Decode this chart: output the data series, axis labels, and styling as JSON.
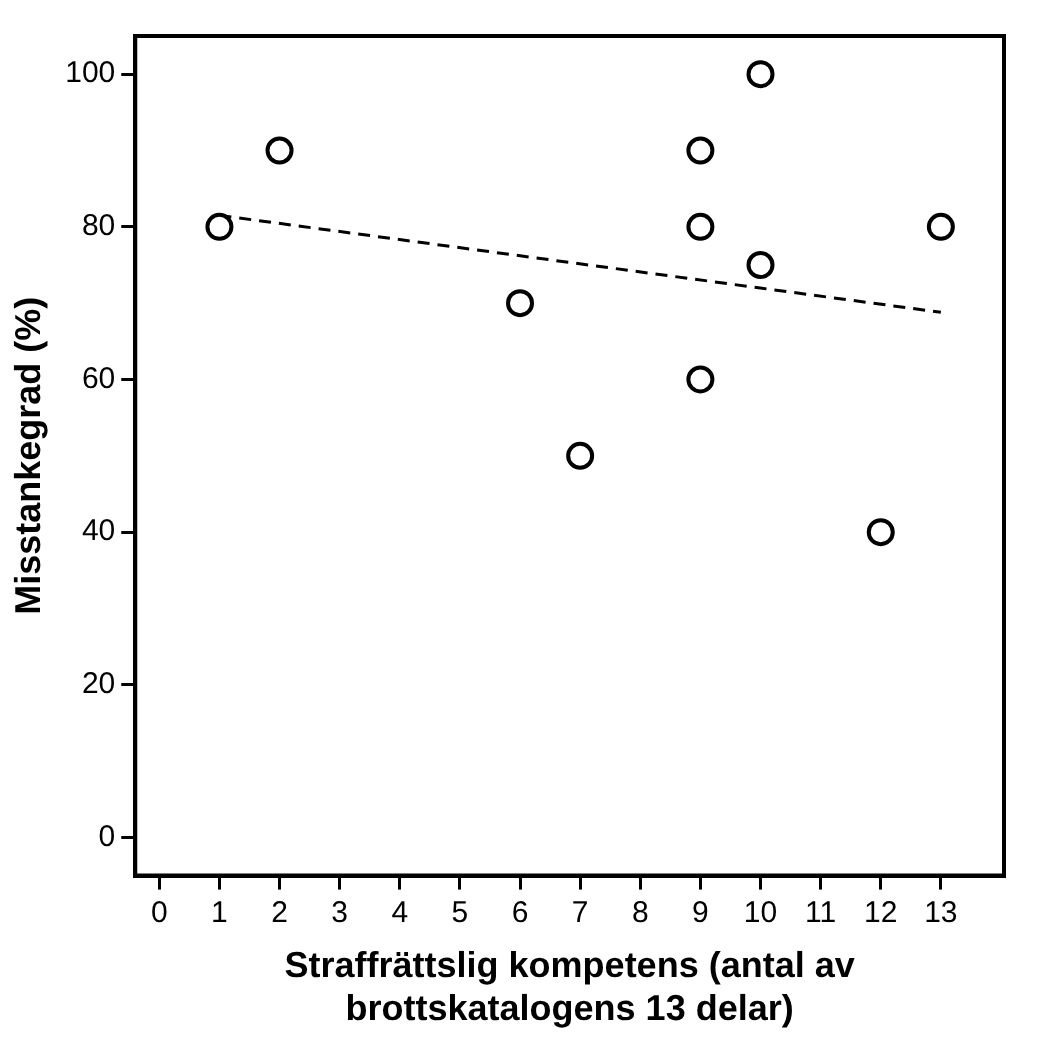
{
  "chart_data": {
    "type": "scatter",
    "xlabel": "Straffrättslig kompetens (antal av brottskatalogens 13 delar)",
    "ylabel": "Misstankegrad (%)",
    "x": [
      1,
      2,
      6,
      7,
      9,
      9,
      9,
      10,
      10,
      12,
      13
    ],
    "series": [
      {
        "type": "scatter",
        "color": "#000000",
        "marker": "circle",
        "values": [
          80,
          90,
          70,
          50,
          90,
          80,
          60,
          100,
          75,
          40,
          80
        ]
      },
      {
        "type": "line",
        "color": "#000000",
        "line_style": "dashed",
        "marker": "none",
        "x": [
          1,
          13
        ],
        "values": [
          81.5,
          68.8
        ]
      }
    ],
    "xlim": [
      -0.4,
      14.05
    ],
    "xticks": [
      0,
      1,
      2,
      3,
      4,
      5,
      6,
      7,
      8,
      9,
      10,
      11,
      12,
      13
    ],
    "ylim": [
      -5,
      105
    ],
    "yticks": [
      0,
      20,
      40,
      60,
      80,
      100
    ],
    "grid": false,
    "legend": false
  }
}
